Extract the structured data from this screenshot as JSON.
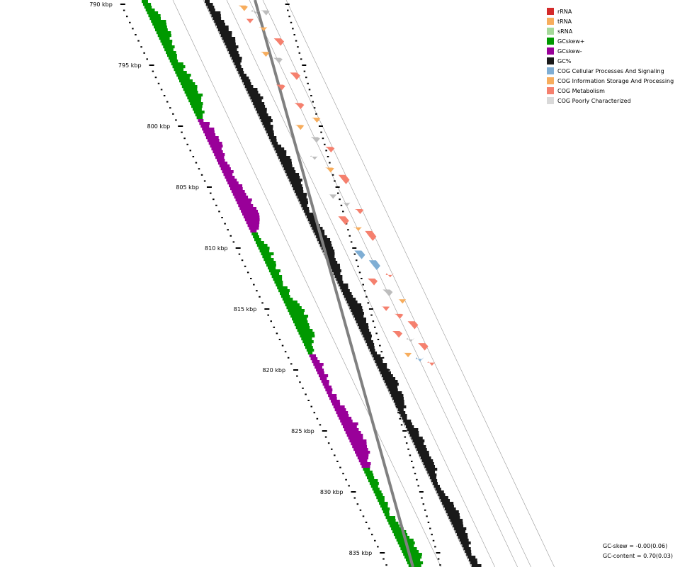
{
  "legend": [
    {
      "label": "rRNA",
      "color": "#d42a2a"
    },
    {
      "label": "tRNA",
      "color": "#f7ad5d"
    },
    {
      "label": "sRNA",
      "color": "#a5d99a"
    },
    {
      "label": "GCskew+",
      "color": "#009900"
    },
    {
      "label": "GCskew-",
      "color": "#990099"
    },
    {
      "label": "GC%",
      "color": "#1a1a1a"
    },
    {
      "label": "COG Cellular Processes And Signaling",
      "color": "#7faed4"
    },
    {
      "label": "COG Information Storage And Processing",
      "color": "#f7ad5d"
    },
    {
      "label": "COG Metabolism",
      "color": "#f5806e"
    },
    {
      "label": "COG Poorly Characterized",
      "color": "#d9d9d9"
    }
  ],
  "ticks": [
    "790 kbp",
    "795 kbp",
    "800 kbp",
    "805 kbp",
    "810 kbp",
    "815 kbp",
    "820 kbp",
    "825 kbp",
    "830 kbp",
    "835 kbp"
  ],
  "stats": {
    "gc_skew": "GC-skew = -0.00(0.06)",
    "gc_content": "GC-content = 0.70(0.03)"
  },
  "colors": {
    "skew_pos": "#009900",
    "skew_neg": "#990099",
    "gc": "#1a1a1a",
    "backbone": "#808080",
    "ring": "#999999",
    "poorly": "#bdbdbd"
  },
  "features": [
    {
      "kbp": 790.1,
      "len": 0.4,
      "cog": "info"
    },
    {
      "kbp": 790.6,
      "len": 0.15,
      "cog": "poorly"
    },
    {
      "kbp": 790.5,
      "len": 0.35,
      "cog": "poorly"
    },
    {
      "kbp": 791.2,
      "len": 0.3,
      "cog": "metab"
    },
    {
      "kbp": 791.9,
      "len": 0.25,
      "cog": "info"
    },
    {
      "kbp": 792.8,
      "len": 0.55,
      "cog": "metab"
    },
    {
      "kbp": 793.9,
      "len": 0.35,
      "cog": "info"
    },
    {
      "kbp": 794.4,
      "len": 0.4,
      "cog": "poorly"
    },
    {
      "kbp": 795.6,
      "len": 0.55,
      "cog": "metab"
    },
    {
      "kbp": 796.6,
      "len": 0.4,
      "cog": "metab"
    },
    {
      "kbp": 798.1,
      "len": 0.45,
      "cog": "metab"
    },
    {
      "kbp": 799.3,
      "len": 0.35,
      "cog": "info"
    },
    {
      "kbp": 799.9,
      "len": 0.35,
      "cog": "info"
    },
    {
      "kbp": 800.9,
      "len": 0.4,
      "cog": "poorly"
    },
    {
      "kbp": 801.7,
      "len": 0.4,
      "cog": "metab"
    },
    {
      "kbp": 802.5,
      "len": 0.2,
      "cog": "poorly"
    },
    {
      "kbp": 803.4,
      "len": 0.35,
      "cog": "info"
    },
    {
      "kbp": 804.0,
      "len": 0.7,
      "cog": "metab"
    },
    {
      "kbp": 805.6,
      "len": 0.3,
      "cog": "poorly"
    },
    {
      "kbp": 806.3,
      "len": 0.25,
      "cog": "poorly"
    },
    {
      "kbp": 806.8,
      "len": 0.35,
      "cog": "metab"
    },
    {
      "kbp": 807.4,
      "len": 0.65,
      "cog": "metab"
    },
    {
      "kbp": 808.3,
      "len": 0.25,
      "cog": "info"
    },
    {
      "kbp": 808.6,
      "len": 0.75,
      "cog": "metab"
    },
    {
      "kbp": 810.2,
      "len": 0.65,
      "cog": "cell"
    },
    {
      "kbp": 811.0,
      "len": 0.75,
      "cog": "cell"
    },
    {
      "kbp": 812.2,
      "len": 0.15,
      "cog": "metab"
    },
    {
      "kbp": 812.5,
      "len": 0.5,
      "cog": "metab"
    },
    {
      "kbp": 813.4,
      "len": 0.5,
      "cog": "poorly"
    },
    {
      "kbp": 814.2,
      "len": 0.3,
      "cog": "info"
    },
    {
      "kbp": 814.8,
      "len": 0.3,
      "cog": "metab"
    },
    {
      "kbp": 815.4,
      "len": 0.35,
      "cog": "metab"
    },
    {
      "kbp": 816.0,
      "len": 0.6,
      "cog": "metab"
    },
    {
      "kbp": 816.8,
      "len": 0.5,
      "cog": "metab"
    },
    {
      "kbp": 817.5,
      "len": 0.15,
      "cog": "poorly"
    },
    {
      "kbp": 817.8,
      "len": 0.55,
      "cog": "metab"
    },
    {
      "kbp": 818.6,
      "len": 0.3,
      "cog": "info"
    },
    {
      "kbp": 819.1,
      "len": 0.15,
      "cog": "cell"
    },
    {
      "kbp": 819.4,
      "len": 0.2,
      "cog": "metab"
    }
  ]
}
